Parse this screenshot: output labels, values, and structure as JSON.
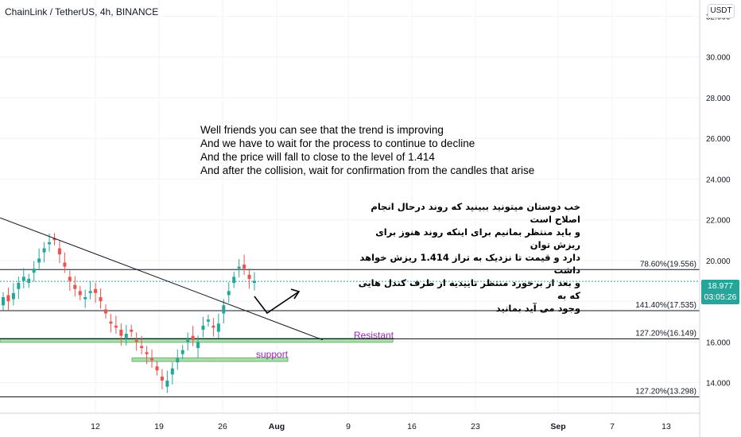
{
  "header": {
    "title": "ChainLink / TetherUS, 4h, BINANCE",
    "currency": "USDT"
  },
  "notes": {
    "english": [
      "Well friends you can see that the trend is improving",
      "And we have to wait for the process to continue to decline",
      "And the price will fall to close to the level of 1.414",
      "And after the collision, wait for confirmation from the candles that arise"
    ],
    "persian": [
      "خب دوستان میتونید ببینید که روند درحال انجام اصلاح است",
      "و باید منتظر بمانیم برای اینکه روند هنوز برای ریزش توان",
      "دارد و قیمت تا نزدیک به تراز 1.414 ریزش خواهد داشت",
      "و بعد از برخورد منتظر تاییدیه از طرف کندل هایی که به",
      "وجود می آید بمانید"
    ]
  },
  "zones": {
    "resistant_label": "Resistant",
    "support_label": "support"
  },
  "last_price": {
    "price": "18.977",
    "countdown": "03:05:26",
    "value": 18.977,
    "color": "#26a69a"
  },
  "chart_data": {
    "type": "candlestick",
    "symbol": "LINKUSDT",
    "timeframe": "4h",
    "y_axis": {
      "range": [
        12.5,
        32.8
      ],
      "ticks": [
        14,
        16,
        18,
        20,
        22,
        24,
        26,
        28,
        30,
        32
      ],
      "tick_labels": [
        "14.000",
        "16.000",
        "18.000",
        "20.000",
        "22.000",
        "24.000",
        "26.000",
        "28.000",
        "30.000",
        "32.000"
      ]
    },
    "x_axis": {
      "tick_labels": [
        "12",
        "19",
        "26",
        "Aug",
        "9",
        "16",
        "23",
        "Sep",
        "7",
        "13"
      ]
    },
    "price_series": [
      [
        17.8,
        18.3,
        18.1,
        18.6,
        19.0,
        18.9,
        19.4,
        19.9,
        20.4,
        20.8,
        21.1,
        20.6,
        19.9,
        19.2,
        18.8,
        18.5,
        18.1,
        18.4,
        18.6,
        18.2,
        17.6,
        17.0,
        16.8,
        16.6,
        16.2,
        16.6,
        16.1,
        15.8,
        15.5,
        15.2,
        14.8,
        14.3,
        13.8,
        14.4,
        15.0,
        15.4,
        16.0,
        16.3,
        15.7,
        16.6,
        17.0,
        16.8,
        16.5,
        17.4,
        18.3,
        18.9,
        19.6,
        19.8,
        19.3,
        18.9
      ],
      [
        18.2,
        18.0,
        18.4,
        18.9,
        19.2,
        19.1,
        19.6,
        20.1,
        20.6,
        20.9,
        21.0,
        20.3,
        19.7,
        19.0,
        18.6,
        18.3,
        18.2,
        18.5,
        18.4,
        18.0,
        17.4,
        16.9,
        16.7,
        16.3,
        16.4,
        16.5,
        16.0,
        15.7,
        15.4,
        15.1,
        14.6,
        14.1,
        14.1,
        14.7,
        15.2,
        15.6,
        16.1,
        16.1,
        16.0,
        16.8,
        17.1,
        16.7,
        16.9,
        17.8,
        18.5,
        19.2,
        19.7,
        19.6,
        19.1,
        19.0
      ]
    ],
    "levels": [
      {
        "label": "78.60%(19.556)",
        "price": 19.556
      },
      {
        "label": "141.40%(17.535)",
        "price": 17.535
      },
      {
        "label": "127.20%(16.149)",
        "price": 16.149
      },
      {
        "label": "127.20%(13.298)",
        "price": 13.298
      }
    ],
    "zones": [
      {
        "name": "Resistant",
        "low": 15.98,
        "high": 16.18,
        "color": "#a5d6a7"
      },
      {
        "name": "support",
        "low": 15.04,
        "high": 15.22,
        "color": "#a5d6a7"
      }
    ],
    "trendline": {
      "from_price": 22.1,
      "to_price": 16.1
    },
    "colors": {
      "up": "#26a69a",
      "down": "#ef5350",
      "line": "#131722",
      "grid": "#f0f3fa"
    }
  }
}
